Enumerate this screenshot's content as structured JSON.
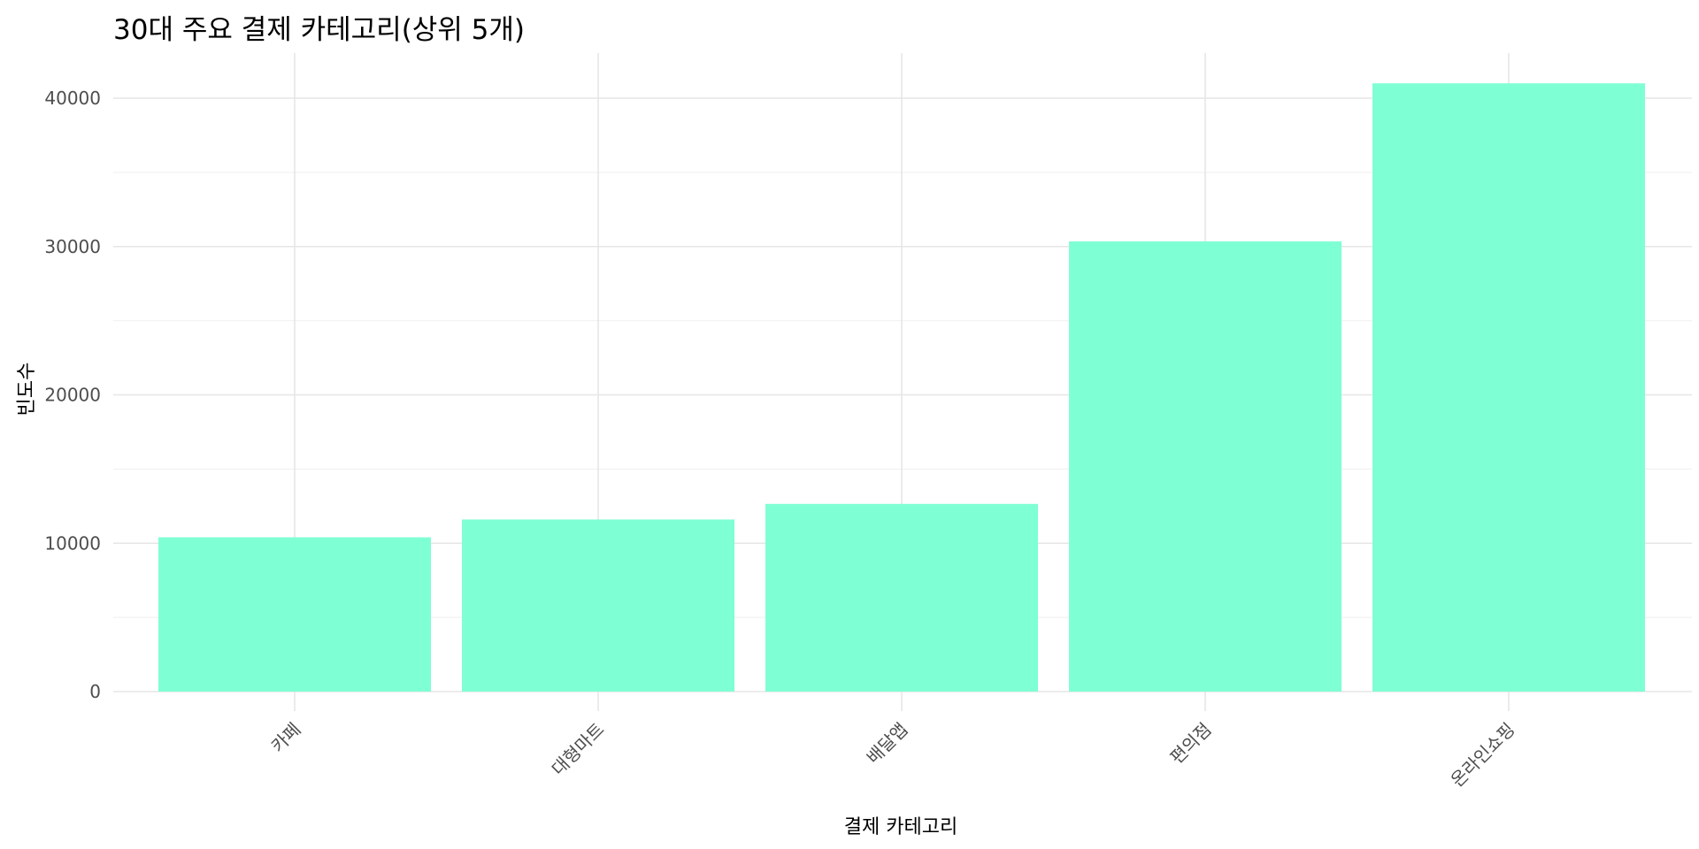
{
  "chart_data": {
    "type": "bar",
    "title": "30대 주요 결제 카테고리(상위 5개)",
    "xlabel": "결제 카테고리",
    "ylabel": "빈도수",
    "categories": [
      "카페",
      "대형마트",
      "배달앱",
      "편의점",
      "온라인쇼핑"
    ],
    "values": [
      10400,
      11600,
      12650,
      30350,
      41000
    ],
    "ylim": [
      0,
      43000
    ],
    "yticks": [
      0,
      10000,
      20000,
      30000,
      40000
    ],
    "ytick_labels": [
      "0",
      "10000",
      "20000",
      "30000",
      "40000"
    ],
    "bar_color": "#7fffd4",
    "grid": true,
    "legend": "none"
  }
}
